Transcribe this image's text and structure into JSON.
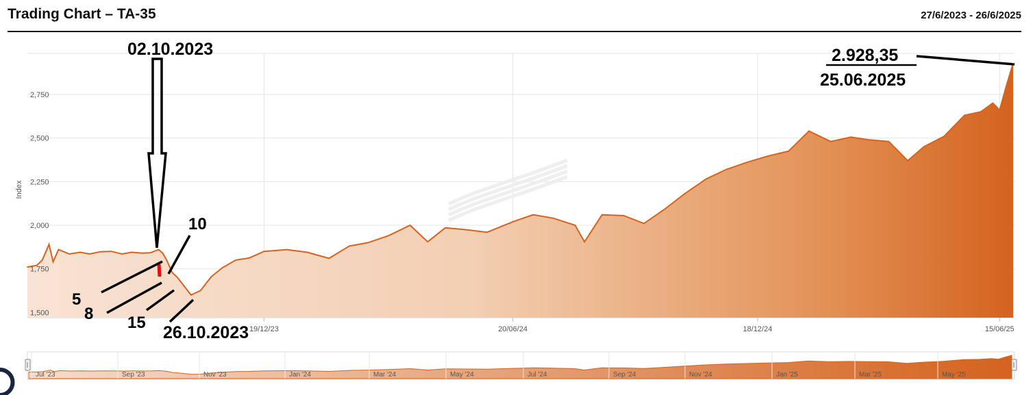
{
  "header": {
    "title": "Trading Chart – TA-35",
    "date_range": "27/6/2023 - 26/6/2025"
  },
  "colors": {
    "line": "#d4631e",
    "fill_light": "#f8e3d4",
    "fill_dark": "#d4631e",
    "marker": "#e01010",
    "grid": "#e4e4e4"
  },
  "chart_data": {
    "type": "area",
    "title": "Trading Chart – TA-35",
    "ylabel": "Index",
    "xlabel": "",
    "ylim": [
      1470,
      2985
    ],
    "xlim": [
      "2023-06-27",
      "2025-06-26"
    ],
    "yticks": [
      1500,
      1750,
      2000,
      2250,
      2500,
      2750
    ],
    "ytick_labels": [
      "1,500",
      "1,750",
      "2,000",
      "2,250",
      "2,500",
      "2,750"
    ],
    "xticks": [
      "2023-12-19",
      "2024-06-20",
      "2024-12-18",
      "2025-06-15"
    ],
    "xtick_labels": [
      "19/12/23",
      "20/06/24",
      "18/12/24",
      "15/06/25"
    ],
    "grid": true,
    "legend": "none",
    "series": [
      {
        "x": [
          "2023-06-27",
          "2023-07-04",
          "2023-07-08",
          "2023-07-13",
          "2023-07-16",
          "2023-07-20",
          "2023-07-28",
          "2023-08-05",
          "2023-08-12",
          "2023-08-20",
          "2023-08-28",
          "2023-09-05",
          "2023-09-12",
          "2023-09-20",
          "2023-09-26",
          "2023-10-02",
          "2023-10-05",
          "2023-10-08",
          "2023-10-12",
          "2023-10-16",
          "2023-10-20",
          "2023-10-26",
          "2023-11-02",
          "2023-11-10",
          "2023-11-18",
          "2023-11-28",
          "2023-12-08",
          "2023-12-19",
          "2024-01-05",
          "2024-01-20",
          "2024-02-05",
          "2024-02-20",
          "2024-03-05",
          "2024-03-20",
          "2024-04-05",
          "2024-04-18",
          "2024-05-01",
          "2024-05-15",
          "2024-06-01",
          "2024-06-20",
          "2024-07-05",
          "2024-07-20",
          "2024-08-05",
          "2024-08-12",
          "2024-08-25",
          "2024-09-10",
          "2024-09-25",
          "2024-10-10",
          "2024-10-25",
          "2024-11-10",
          "2024-11-25",
          "2024-12-10",
          "2024-12-25",
          "2025-01-10",
          "2025-01-25",
          "2025-02-10",
          "2025-02-25",
          "2025-03-10",
          "2025-03-25",
          "2025-04-08",
          "2025-04-20",
          "2025-05-05",
          "2025-05-20",
          "2025-06-01",
          "2025-06-10",
          "2025-06-15",
          "2025-06-20",
          "2025-06-25"
        ],
        "values": [
          1760,
          1770,
          1800,
          1890,
          1790,
          1860,
          1835,
          1845,
          1835,
          1848,
          1850,
          1835,
          1845,
          1840,
          1842,
          1860,
          1840,
          1800,
          1730,
          1700,
          1660,
          1600,
          1625,
          1705,
          1755,
          1800,
          1812,
          1850,
          1860,
          1845,
          1810,
          1880,
          1900,
          1940,
          2000,
          1905,
          1985,
          1975,
          1960,
          2020,
          2060,
          2040,
          2000,
          1905,
          2060,
          2055,
          2010,
          2090,
          2180,
          2265,
          2320,
          2360,
          2395,
          2425,
          2540,
          2480,
          2505,
          2490,
          2480,
          2370,
          2450,
          2510,
          2630,
          2650,
          2700,
          2660,
          2800,
          2928.35
        ]
      }
    ],
    "annotations": [
      "02.10.2023",
      "10",
      "5",
      "8",
      "15",
      "26.10.2023",
      "2.928,35",
      "25.06.2025"
    ]
  },
  "navigator": {
    "labels": [
      "Jul '23",
      "Sep '23",
      "Nov '23",
      "Jan '24",
      "Mar '24",
      "May '24",
      "Jul '24",
      "Sep '24",
      "Nov '24",
      "Jan '25",
      "Mar '25",
      "May '25"
    ]
  }
}
